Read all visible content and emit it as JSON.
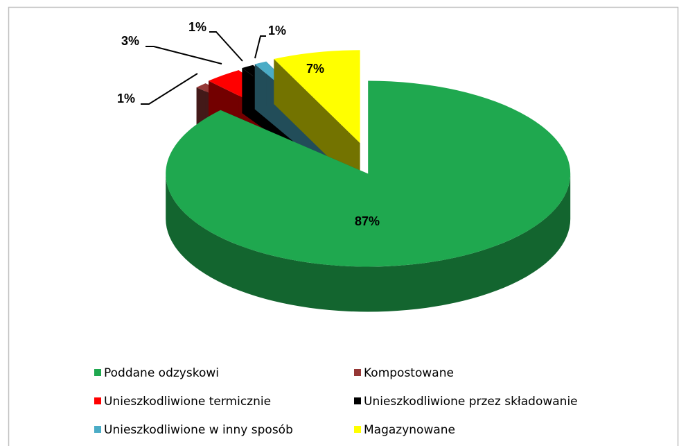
{
  "chart_data": {
    "type": "pie3d",
    "categories": [
      "Poddane odzyskowi",
      "Kompostowane",
      "Unieszkodliwione termicznie",
      "Unieszkodliwione przez składowanie",
      "Unieszkodliwione w inny sposób",
      "Magazynowane"
    ],
    "values": [
      87,
      1,
      3,
      1,
      1,
      7
    ],
    "value_labels": [
      "87%",
      "1%",
      "3%",
      "1%",
      "1%",
      "7%"
    ],
    "colors": [
      "#1fa84f",
      "#953735",
      "#ff0000",
      "#000000",
      "#4bacc6",
      "#ffff00"
    ],
    "legend": "bottom"
  }
}
